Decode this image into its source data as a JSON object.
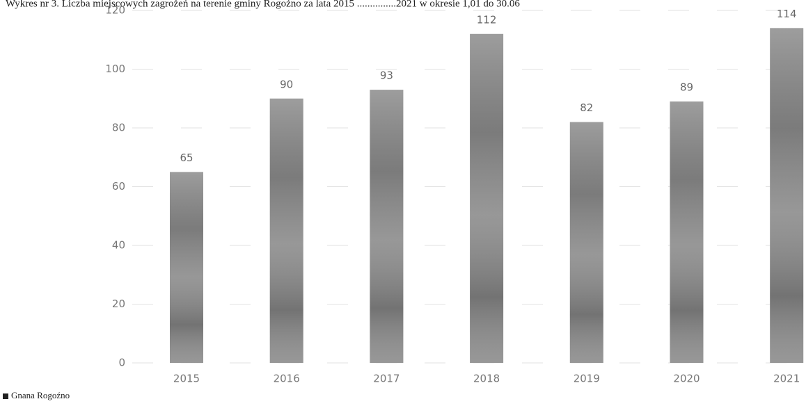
{
  "chart_data": {
    "type": "bar",
    "title": "Wykres nr 3. Liczba miejscowych zagrożeń na terenie gminy Rogoźno za lata 2015 ...............2021 w okresie 1,01 do 30.06",
    "categories": [
      "2015",
      "2016",
      "2017",
      "2018",
      "2019",
      "2020",
      "2021"
    ],
    "series": [
      {
        "name": "Gnana Rogoźno",
        "color": "#8c8c8c",
        "values": [
          65,
          90,
          93,
          112,
          82,
          89,
          114
        ]
      }
    ],
    "ylim": [
      0,
      120
    ],
    "yticks": [
      0,
      20,
      40,
      60,
      80,
      100,
      120
    ],
    "grid": true,
    "legend": "bottom-left"
  }
}
